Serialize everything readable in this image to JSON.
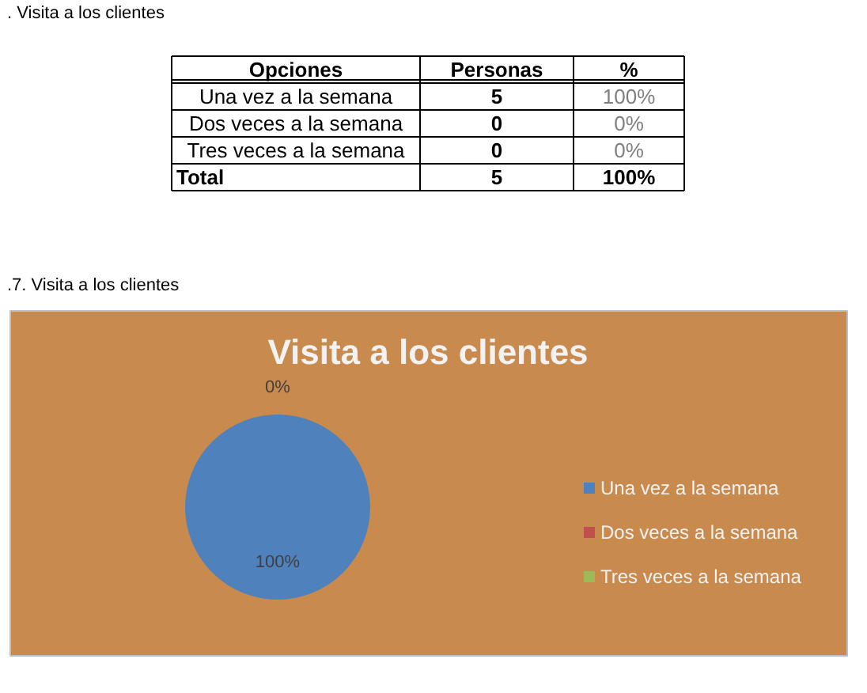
{
  "chart_data": {
    "type": "pie",
    "title": "Visita a los clientes",
    "categories": [
      "Una vez a la semana",
      "Dos veces a la semana",
      "Tres veces a la semana"
    ],
    "values": [
      100,
      0,
      0
    ],
    "colors": [
      "#4f81bd",
      "#c0504d",
      "#9bbb59"
    ],
    "value_labels": [
      "100%",
      "0%",
      null
    ],
    "legend": "right",
    "annotations": [
      ". Visita a los clientes",
      "Opciones",
      "Personas",
      "%",
      "Una vez a la semana",
      "5",
      "100%",
      "Dos veces a la semana",
      "0",
      "0%",
      "Tres veces a la semana",
      "0",
      "0%",
      "Total",
      "5",
      "100%",
      ".7. Visita a los clientes"
    ]
  }
}
